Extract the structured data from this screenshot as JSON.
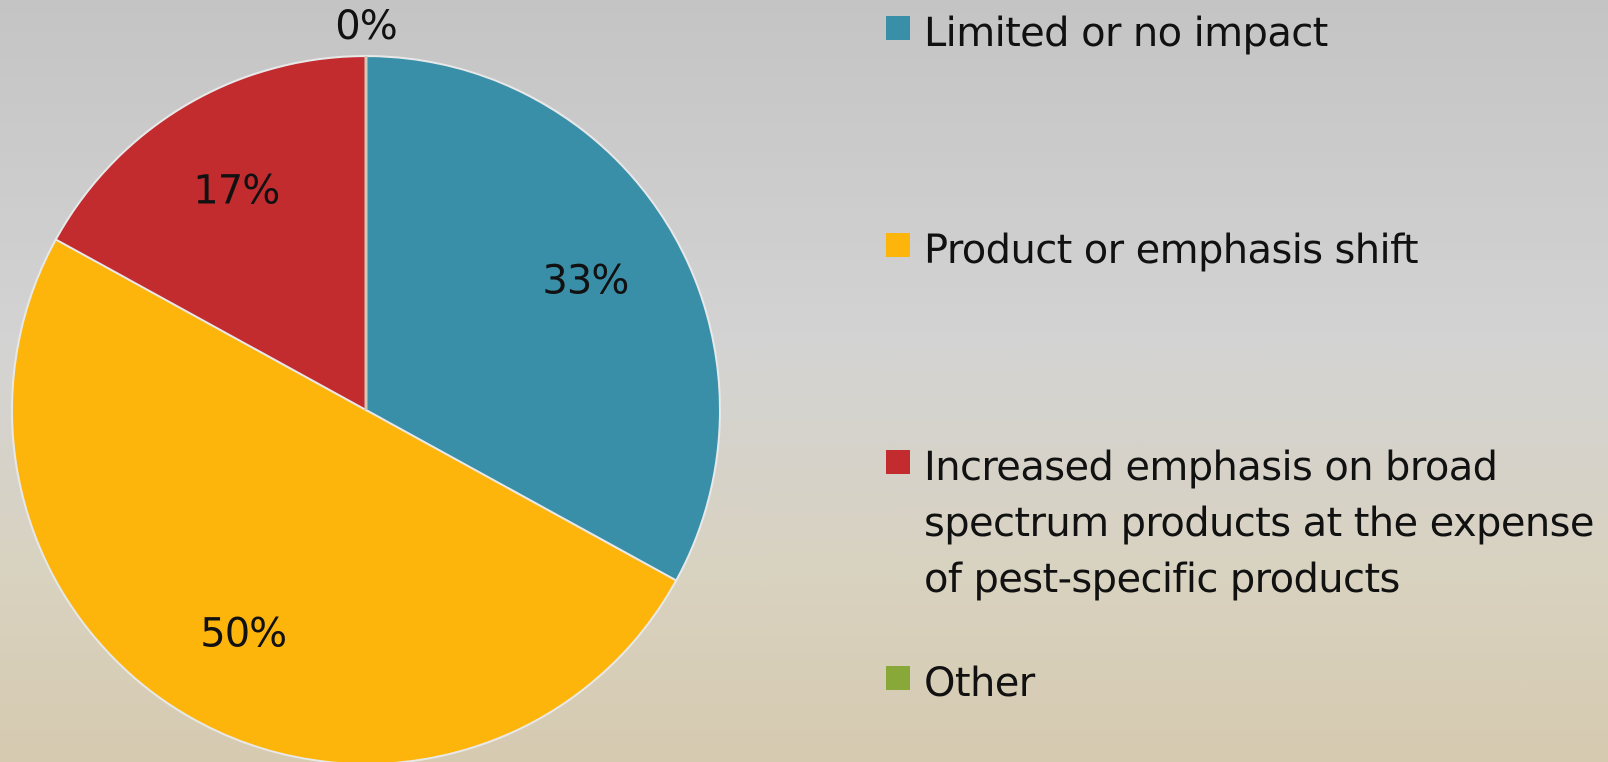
{
  "chart_data": {
    "type": "pie",
    "slices": [
      {
        "label": "Limited or no impact",
        "value": 33,
        "value_label": "33%",
        "color": "#3a8fa8"
      },
      {
        "label": "Product or emphasis shift",
        "value": 50,
        "value_label": "50%",
        "color": "#fdb50c"
      },
      {
        "label": "Increased emphasis on broad spectrum products at the expense of pest-specific products",
        "value": 17,
        "value_label": "17%",
        "color": "#c32c2f"
      },
      {
        "label": "Other",
        "value": 0,
        "value_label": "0%",
        "color": "#88a83a"
      }
    ],
    "start_angle": "12 o'clock",
    "direction": "clockwise",
    "legend_position": "right"
  }
}
